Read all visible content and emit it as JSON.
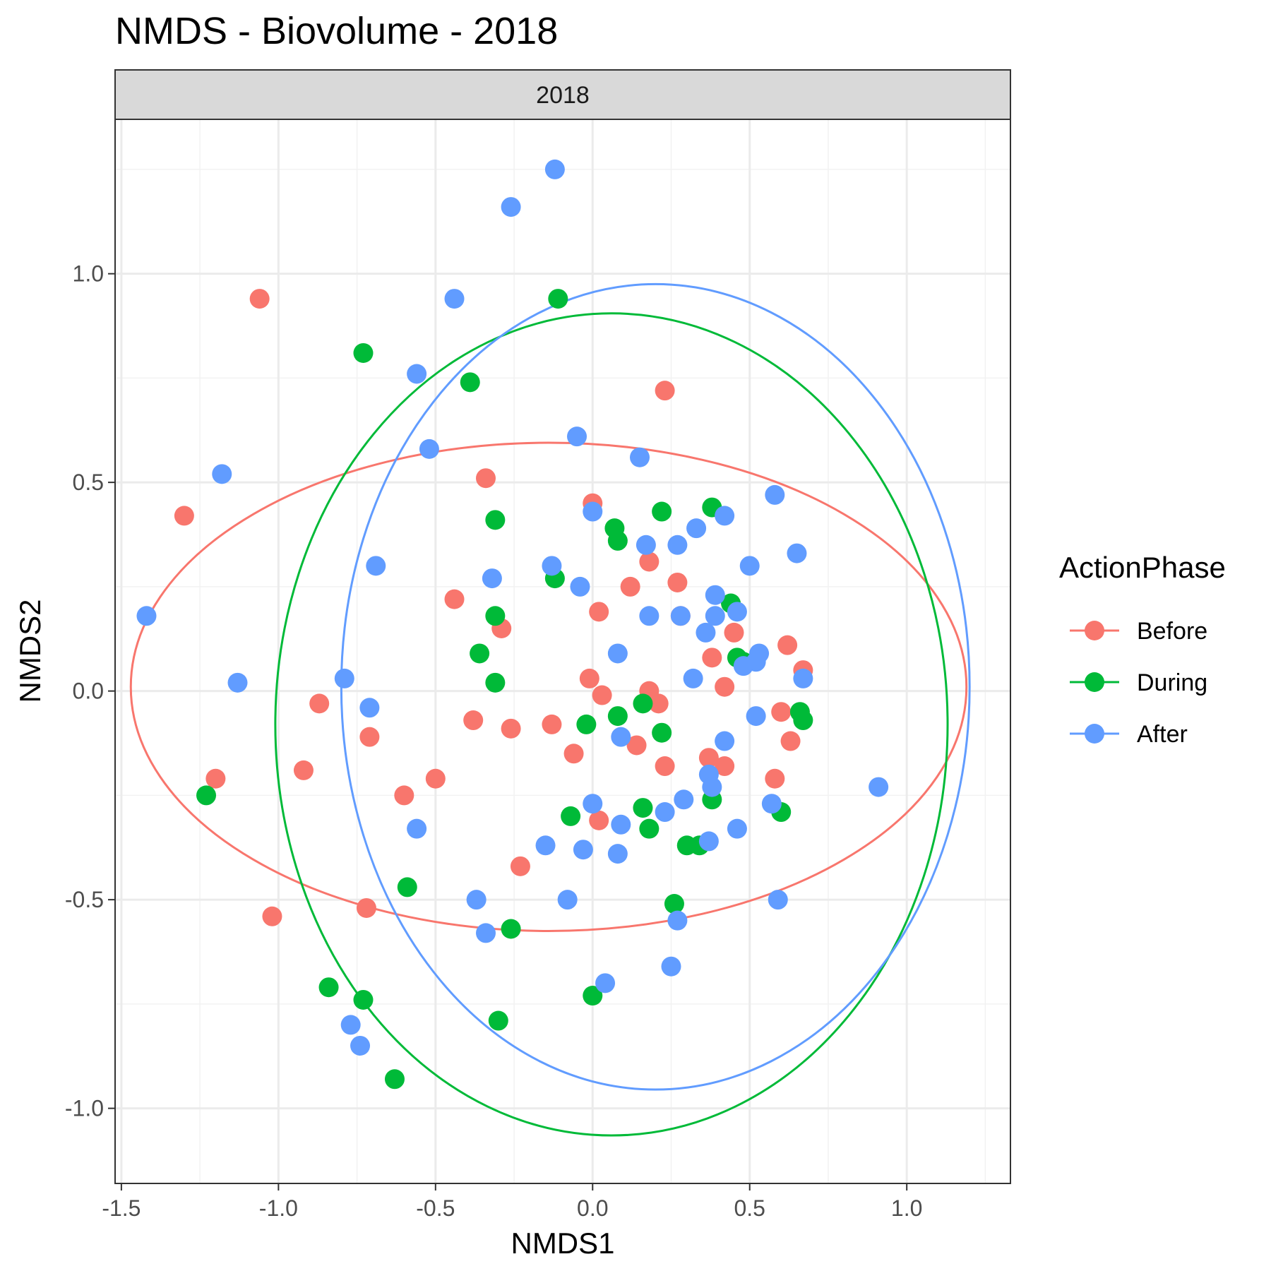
{
  "chart_data": {
    "type": "scatter",
    "title": "NMDS - Biovolume - 2018",
    "facet_label": "2018",
    "xlabel": "NMDS1",
    "ylabel": "NMDS2",
    "xlim": [
      -1.52,
      1.33
    ],
    "ylim": [
      -1.18,
      1.37
    ],
    "x_ticks": [
      {
        "value": -1.5,
        "label": "-1.5"
      },
      {
        "value": -1.0,
        "label": "-1.0"
      },
      {
        "value": -0.5,
        "label": "-0.5"
      },
      {
        "value": 0.0,
        "label": "0.0"
      },
      {
        "value": 0.5,
        "label": "0.5"
      },
      {
        "value": 1.0,
        "label": "1.0"
      }
    ],
    "y_ticks": [
      {
        "value": -1.0,
        "label": "-1.0"
      },
      {
        "value": -0.5,
        "label": "-0.5"
      },
      {
        "value": 0.0,
        "label": "0.0"
      },
      {
        "value": 0.5,
        "label": "0.5"
      },
      {
        "value": 1.0,
        "label": "1.0"
      }
    ],
    "grid": true,
    "legend": {
      "title": "ActionPhase",
      "position": "right"
    },
    "series": [
      {
        "name": "Before",
        "color": "#F8766D",
        "ellipse": {
          "cx": -0.14,
          "cy": 0.01,
          "rx": 1.33,
          "ry": 0.585
        },
        "points": [
          [
            -1.06,
            0.94
          ],
          [
            -1.3,
            0.42
          ],
          [
            -0.34,
            0.51
          ],
          [
            0.23,
            0.72
          ],
          [
            0.0,
            0.45
          ],
          [
            -0.44,
            0.22
          ],
          [
            -0.29,
            0.15
          ],
          [
            0.02,
            0.19
          ],
          [
            0.12,
            0.25
          ],
          [
            0.18,
            0.31
          ],
          [
            0.27,
            0.26
          ],
          [
            0.28,
            0.18
          ],
          [
            0.45,
            0.14
          ],
          [
            0.38,
            0.08
          ],
          [
            0.42,
            0.01
          ],
          [
            0.62,
            0.11
          ],
          [
            0.67,
            0.05
          ],
          [
            0.6,
            -0.05
          ],
          [
            0.63,
            -0.12
          ],
          [
            -0.87,
            -0.03
          ],
          [
            -0.38,
            -0.07
          ],
          [
            -0.26,
            -0.09
          ],
          [
            -0.13,
            -0.08
          ],
          [
            -0.71,
            -0.11
          ],
          [
            -0.01,
            0.03
          ],
          [
            0.03,
            -0.01
          ],
          [
            0.18,
            0.0
          ],
          [
            0.21,
            -0.03
          ],
          [
            -0.92,
            -0.19
          ],
          [
            -1.2,
            -0.21
          ],
          [
            -0.6,
            -0.25
          ],
          [
            -0.5,
            -0.21
          ],
          [
            -0.06,
            -0.15
          ],
          [
            0.14,
            -0.13
          ],
          [
            0.23,
            -0.18
          ],
          [
            0.37,
            -0.16
          ],
          [
            0.42,
            -0.18
          ],
          [
            0.58,
            -0.21
          ],
          [
            0.02,
            -0.31
          ],
          [
            -0.23,
            -0.42
          ],
          [
            -0.72,
            -0.52
          ],
          [
            -1.02,
            -0.54
          ]
        ]
      },
      {
        "name": "During",
        "color": "#00BA38",
        "ellipse": {
          "cx": 0.06,
          "cy": -0.08,
          "rx": 1.07,
          "ry": 0.985
        },
        "points": [
          [
            -0.11,
            0.94
          ],
          [
            -0.73,
            0.81
          ],
          [
            -0.39,
            0.74
          ],
          [
            0.38,
            0.44
          ],
          [
            0.22,
            0.43
          ],
          [
            -0.31,
            0.41
          ],
          [
            0.07,
            0.39
          ],
          [
            0.08,
            0.36
          ],
          [
            -0.12,
            0.27
          ],
          [
            0.44,
            0.21
          ],
          [
            -0.31,
            0.18
          ],
          [
            -0.36,
            0.09
          ],
          [
            0.46,
            0.08
          ],
          [
            0.48,
            0.07
          ],
          [
            -0.31,
            0.02
          ],
          [
            0.16,
            -0.03
          ],
          [
            -0.02,
            -0.08
          ],
          [
            0.08,
            -0.06
          ],
          [
            0.66,
            -0.05
          ],
          [
            0.67,
            -0.07
          ],
          [
            -1.23,
            -0.25
          ],
          [
            0.22,
            -0.1
          ],
          [
            0.38,
            -0.26
          ],
          [
            0.16,
            -0.28
          ],
          [
            -0.07,
            -0.3
          ],
          [
            0.18,
            -0.33
          ],
          [
            0.6,
            -0.29
          ],
          [
            0.3,
            -0.37
          ],
          [
            0.34,
            -0.37
          ],
          [
            -0.59,
            -0.47
          ],
          [
            0.26,
            -0.51
          ],
          [
            -0.26,
            -0.57
          ],
          [
            -0.84,
            -0.71
          ],
          [
            -0.73,
            -0.74
          ],
          [
            0.0,
            -0.73
          ],
          [
            -0.3,
            -0.79
          ],
          [
            -0.63,
            -0.93
          ]
        ]
      },
      {
        "name": "After",
        "color": "#619CFF",
        "ellipse": {
          "cx": 0.2,
          "cy": 0.01,
          "rx": 1.0,
          "ry": 0.965
        },
        "points": [
          [
            -0.12,
            1.25
          ],
          [
            -0.26,
            1.16
          ],
          [
            -0.44,
            0.94
          ],
          [
            -0.56,
            0.76
          ],
          [
            -0.52,
            0.58
          ],
          [
            -0.05,
            0.61
          ],
          [
            0.15,
            0.56
          ],
          [
            -1.18,
            0.52
          ],
          [
            0.58,
            0.47
          ],
          [
            0.0,
            0.43
          ],
          [
            0.42,
            0.42
          ],
          [
            0.33,
            0.39
          ],
          [
            0.17,
            0.35
          ],
          [
            0.27,
            0.35
          ],
          [
            0.65,
            0.33
          ],
          [
            -0.69,
            0.3
          ],
          [
            -0.13,
            0.3
          ],
          [
            0.5,
            0.3
          ],
          [
            -0.32,
            0.27
          ],
          [
            -0.04,
            0.25
          ],
          [
            0.39,
            0.23
          ],
          [
            -1.42,
            0.18
          ],
          [
            0.18,
            0.18
          ],
          [
            0.28,
            0.18
          ],
          [
            0.39,
            0.18
          ],
          [
            0.46,
            0.19
          ],
          [
            0.36,
            0.14
          ],
          [
            0.08,
            0.09
          ],
          [
            0.53,
            0.09
          ],
          [
            0.52,
            0.07
          ],
          [
            0.48,
            0.06
          ],
          [
            0.67,
            0.03
          ],
          [
            -1.13,
            0.02
          ],
          [
            -0.79,
            0.03
          ],
          [
            0.32,
            0.03
          ],
          [
            -0.71,
            -0.04
          ],
          [
            0.52,
            -0.06
          ],
          [
            0.42,
            -0.12
          ],
          [
            0.09,
            -0.11
          ],
          [
            0.91,
            -0.23
          ],
          [
            0.37,
            -0.2
          ],
          [
            0.38,
            -0.23
          ],
          [
            0.0,
            -0.27
          ],
          [
            0.29,
            -0.26
          ],
          [
            0.57,
            -0.27
          ],
          [
            0.23,
            -0.29
          ],
          [
            -0.56,
            -0.33
          ],
          [
            0.09,
            -0.32
          ],
          [
            0.46,
            -0.33
          ],
          [
            -0.15,
            -0.37
          ],
          [
            0.37,
            -0.36
          ],
          [
            -0.03,
            -0.38
          ],
          [
            0.08,
            -0.39
          ],
          [
            -0.37,
            -0.5
          ],
          [
            -0.08,
            -0.5
          ],
          [
            0.59,
            -0.5
          ],
          [
            -0.34,
            -0.58
          ],
          [
            0.27,
            -0.55
          ],
          [
            0.04,
            -0.7
          ],
          [
            0.25,
            -0.66
          ],
          [
            -0.77,
            -0.8
          ],
          [
            -0.74,
            -0.85
          ]
        ]
      }
    ]
  }
}
